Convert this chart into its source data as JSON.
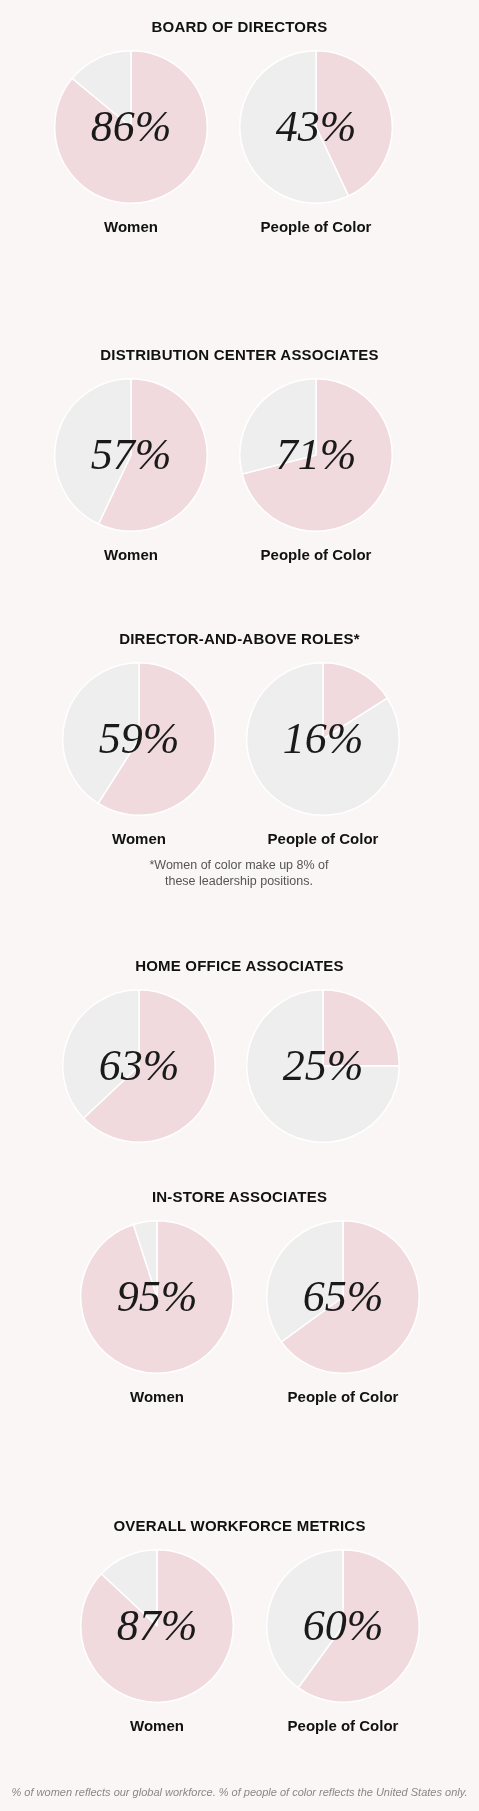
{
  "chart_data": [
    {
      "type": "pie",
      "title": "BOARD OF DIRECTORS",
      "xlabel": "Women",
      "categories": [
        null,
        null
      ],
      "values": [
        86,
        14
      ],
      "colors": [
        "#f1dade",
        "#efeeee"
      ],
      "value_labels": [
        "86%",
        null
      ]
    },
    {
      "type": "pie",
      "xlabel": "People of Color",
      "categories": [
        null,
        null
      ],
      "values": [
        43,
        57
      ],
      "colors": [
        "#f1dade",
        "#efeeee"
      ],
      "value_labels": [
        "43%",
        null
      ]
    },
    {
      "type": "pie",
      "title": "DISTRIBUTION CENTER ASSOCIATES",
      "xlabel": "Women",
      "categories": [
        null,
        null
      ],
      "values": [
        57,
        43
      ],
      "colors": [
        "#f1dade",
        "#efeeee"
      ],
      "value_labels": [
        "57%",
        null
      ]
    },
    {
      "type": "pie",
      "xlabel": "People of Color",
      "categories": [
        null,
        null
      ],
      "values": [
        71,
        29
      ],
      "colors": [
        "#f1dade",
        "#efeeee"
      ],
      "value_labels": [
        "71%",
        null
      ]
    },
    {
      "type": "pie",
      "title": "DIRECTOR-AND-ABOVE ROLES*",
      "xlabel": "Women",
      "annotations": [
        "*Women of color make up 8% of these leadership positions."
      ],
      "categories": [
        null,
        null
      ],
      "values": [
        59,
        41
      ],
      "colors": [
        "#f1dade",
        "#efeeee"
      ],
      "value_labels": [
        "59%",
        null
      ]
    },
    {
      "type": "pie",
      "xlabel": "People of Color",
      "categories": [
        null,
        null
      ],
      "values": [
        16,
        84
      ],
      "colors": [
        "#f1dade",
        "#efeeee"
      ],
      "value_labels": [
        "16%",
        null
      ]
    },
    {
      "type": "pie",
      "title": "HOME OFFICE ASSOCIATES",
      "categories": [
        null,
        null
      ],
      "values": [
        63,
        37
      ],
      "colors": [
        "#f1dade",
        "#efeeee"
      ],
      "value_labels": [
        "63%",
        null
      ]
    },
    {
      "type": "pie",
      "categories": [
        null,
        null
      ],
      "values": [
        25,
        75
      ],
      "colors": [
        "#f1dade",
        "#efeeee"
      ],
      "value_labels": [
        "25%",
        null
      ]
    },
    {
      "type": "pie",
      "title": "IN-STORE ASSOCIATES",
      "xlabel": "Women",
      "categories": [
        null,
        null
      ],
      "values": [
        95,
        5
      ],
      "colors": [
        "#f1dade",
        "#efeeee"
      ],
      "value_labels": [
        "95%",
        null
      ]
    },
    {
      "type": "pie",
      "xlabel": "People of Color",
      "categories": [
        null,
        null
      ],
      "values": [
        65,
        35
      ],
      "colors": [
        "#f1dade",
        "#efeeee"
      ],
      "value_labels": [
        "65%",
        null
      ]
    },
    {
      "type": "pie",
      "title": "OVERALL WORKFORCE METRICS",
      "xlabel": "Women",
      "categories": [
        null,
        null
      ],
      "values": [
        87,
        13
      ],
      "colors": [
        "#f1dade",
        "#efeeee"
      ],
      "value_labels": [
        "87%",
        null
      ]
    },
    {
      "type": "pie",
      "xlabel": "People of Color",
      "annotations": [
        "% of women reflects our global workforce. % of people of color reflects the United States only."
      ],
      "categories": [
        null,
        null
      ],
      "values": [
        60,
        40
      ],
      "colors": [
        "#f1dade",
        "#efeeee"
      ],
      "value_labels": [
        "60%",
        null
      ]
    }
  ]
}
